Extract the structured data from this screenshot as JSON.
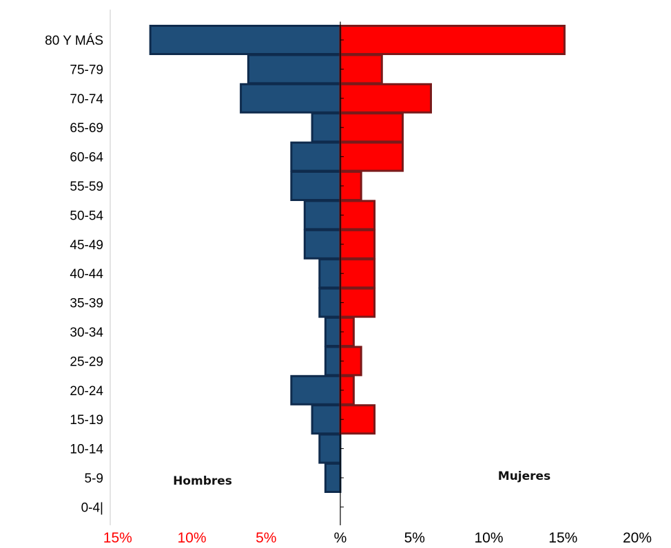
{
  "chart_data": {
    "type": "bar",
    "subtype": "population-pyramid",
    "orientation": "horizontal",
    "categories": [
      "80 Y MÁS",
      "75-79",
      "70-74",
      "65-69",
      "60-64",
      "55-59",
      "50-54",
      "45-49",
      "40-44",
      "35-39",
      "30-34",
      "25-29",
      "20-24",
      "15-19",
      "10-14",
      "5-9",
      "0-4|"
    ],
    "series": [
      {
        "name": "Hombres",
        "side": "left",
        "color": "#1f4e79",
        "border_color": "#0f2b4d",
        "values": [
          12.8,
          6.2,
          6.7,
          1.9,
          3.3,
          3.3,
          2.4,
          2.4,
          1.4,
          1.4,
          1.0,
          1.0,
          3.3,
          1.9,
          1.4,
          1.0,
          0
        ]
      },
      {
        "name": "Mujeres",
        "side": "right",
        "color": "#ff0000",
        "border_color": "#7a1a1a",
        "values": [
          15.1,
          2.8,
          6.1,
          4.2,
          4.2,
          1.4,
          2.3,
          2.3,
          2.3,
          2.3,
          0.9,
          1.4,
          0.9,
          2.3,
          0,
          0,
          0
        ]
      }
    ],
    "x_ticks": [
      {
        "label": "15%",
        "value": -15,
        "color": "#ff0000"
      },
      {
        "label": "10%",
        "value": -10,
        "color": "#ff0000"
      },
      {
        "label": "5%",
        "value": -5,
        "color": "#ff0000"
      },
      {
        "label": "%",
        "value": 0,
        "color": "#000000"
      },
      {
        "label": "5%",
        "value": 5,
        "color": "#000000"
      },
      {
        "label": "10%",
        "value": 10,
        "color": "#000000"
      },
      {
        "label": "15%",
        "value": 15,
        "color": "#000000"
      },
      {
        "label": "20%",
        "value": 20,
        "color": "#000000"
      }
    ],
    "xlim": [
      -15,
      20
    ],
    "xlabel": "",
    "ylabel": "",
    "title": "",
    "grid": false,
    "legend": "none"
  }
}
